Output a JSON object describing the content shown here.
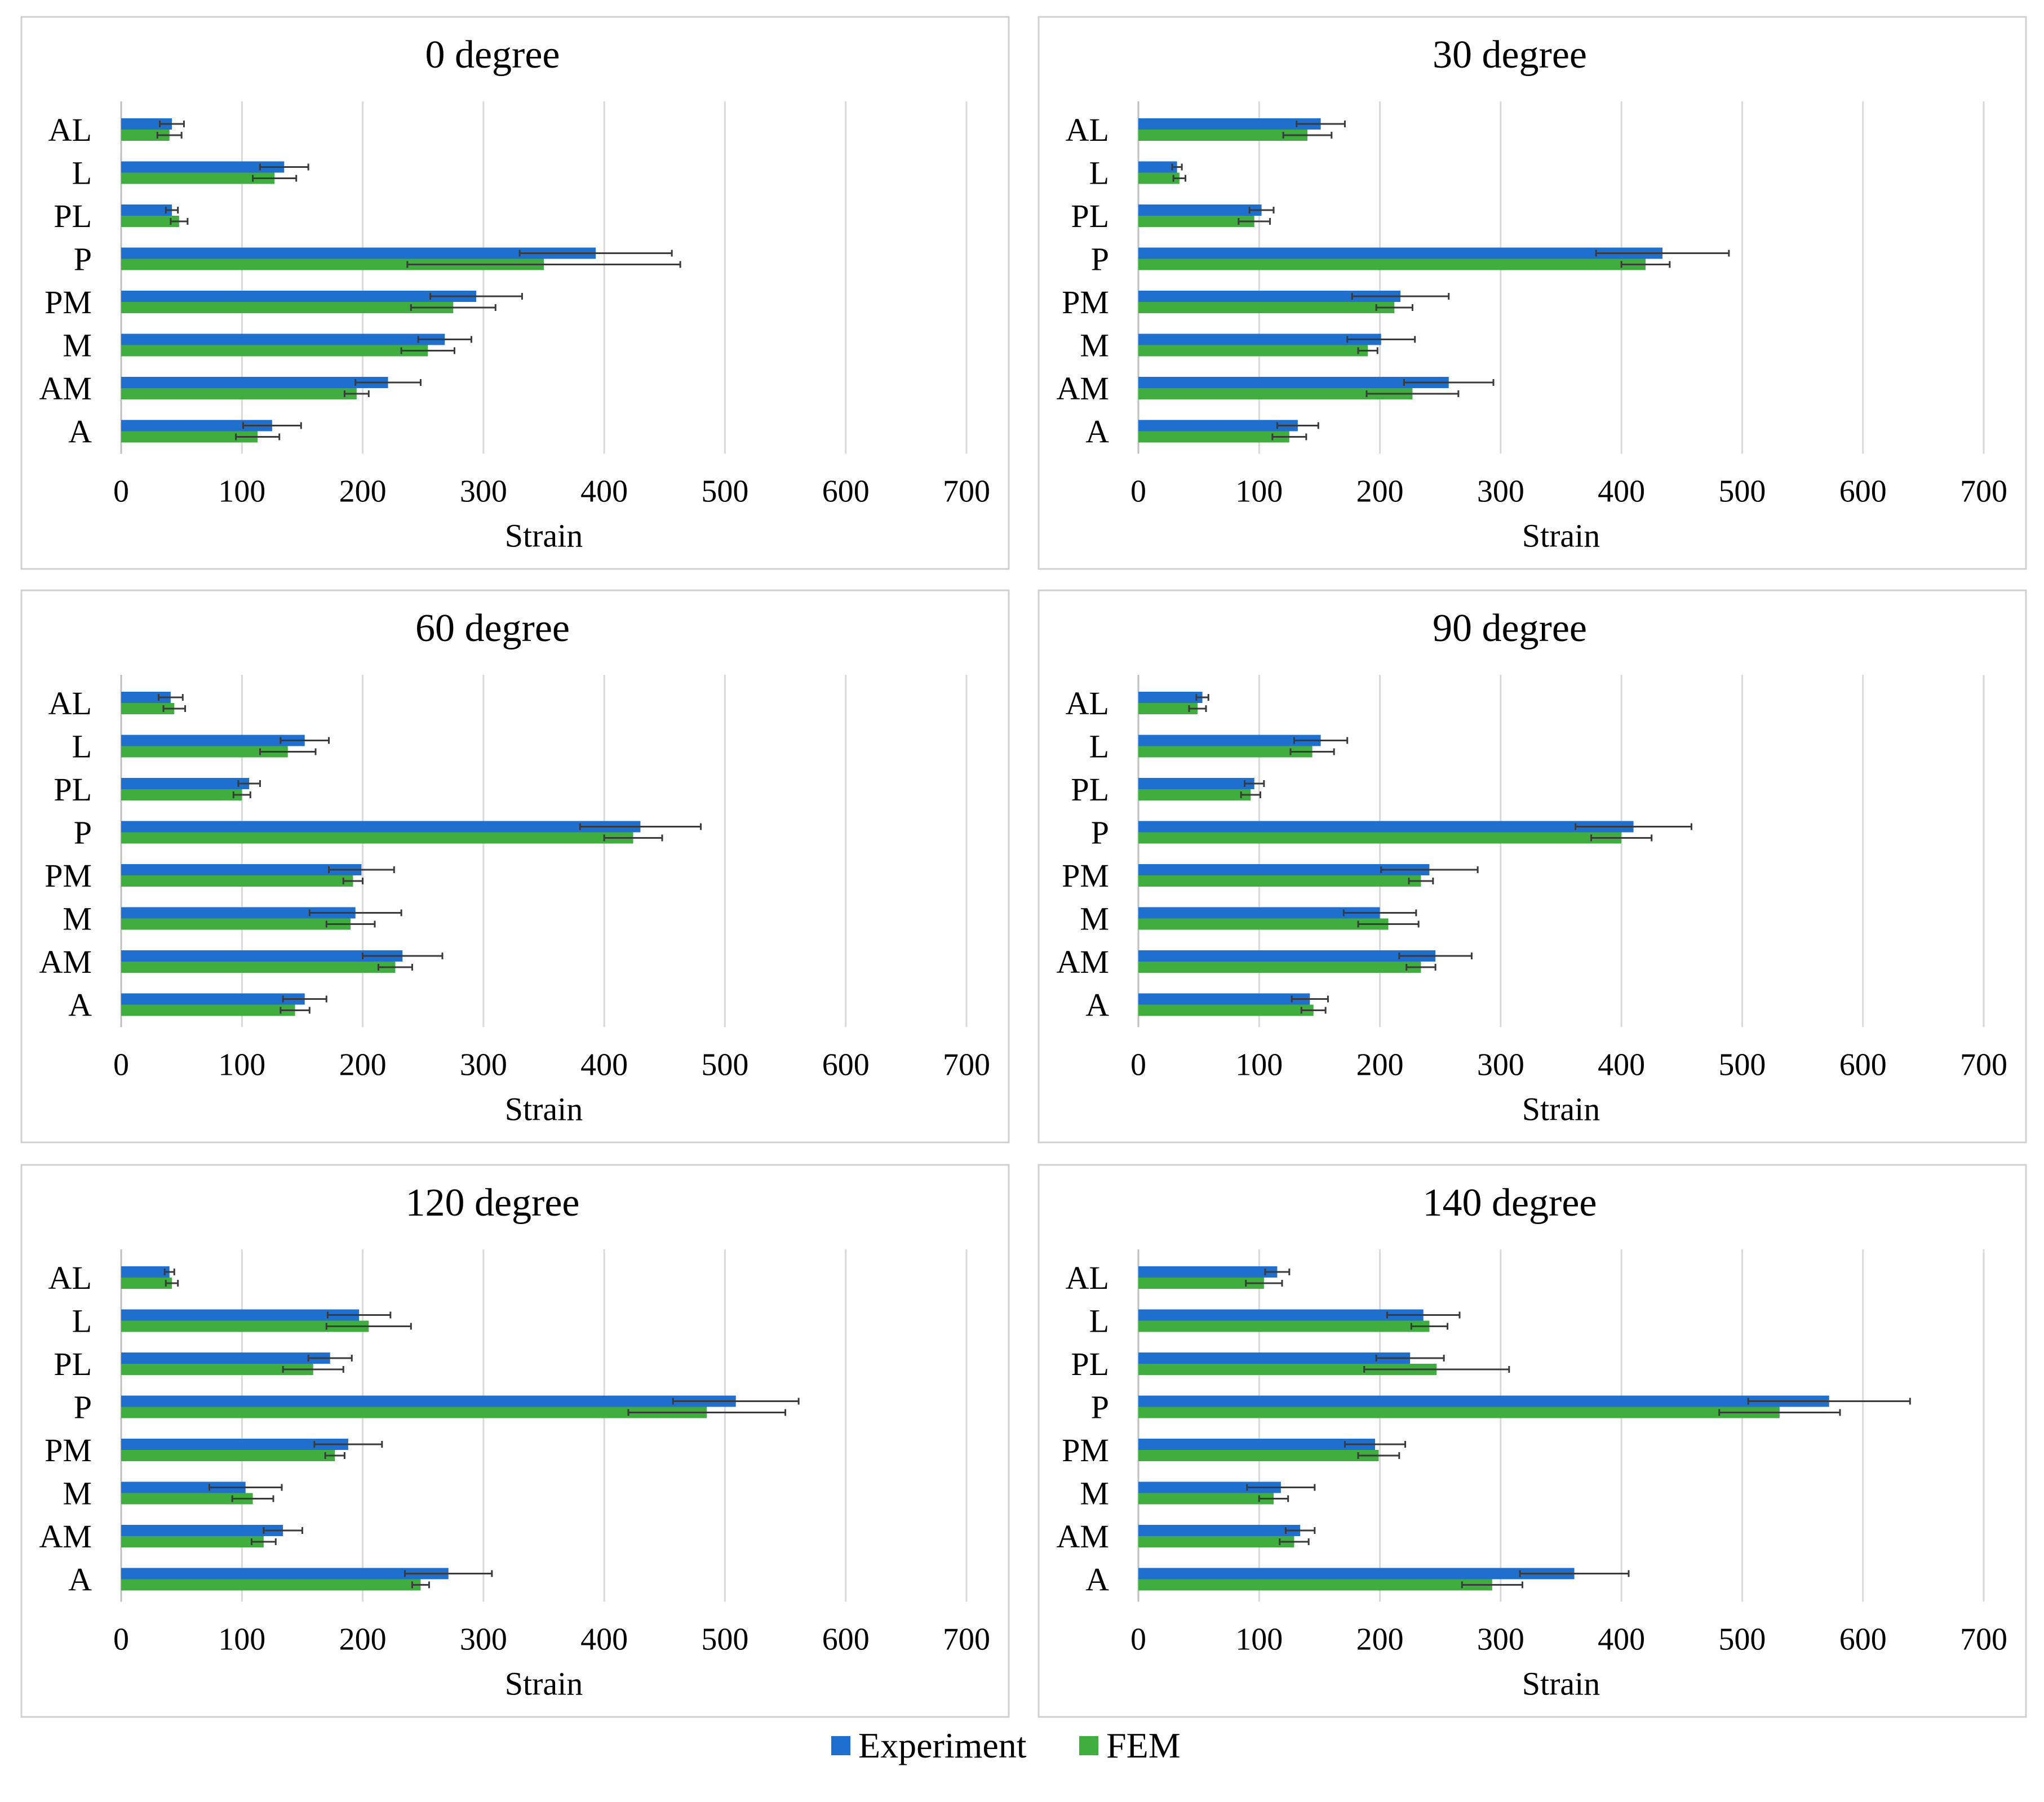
{
  "chart_data": [
    {
      "type": "bar",
      "orientation": "horizontal",
      "title": "0 degree",
      "xlabel": "Strain",
      "ylabel": "",
      "xlim": [
        0,
        700
      ],
      "xticks": [
        0,
        100,
        200,
        300,
        400,
        500,
        600,
        700
      ],
      "categories": [
        "AL",
        "L",
        "PL",
        "P",
        "PM",
        "M",
        "AM",
        "A"
      ],
      "series": [
        {
          "name": "Experiment",
          "values": [
            42,
            135,
            42,
            393,
            294,
            268,
            221,
            125
          ],
          "errors": [
            10,
            20,
            5,
            63,
            38,
            22,
            27,
            24
          ]
        },
        {
          "name": "FEM",
          "values": [
            40,
            127,
            48,
            350,
            275,
            254,
            195,
            113
          ],
          "errors": [
            10,
            18,
            7,
            113,
            35,
            22,
            10,
            18
          ]
        }
      ]
    },
    {
      "type": "bar",
      "orientation": "horizontal",
      "title": "30 degree",
      "xlabel": "Strain",
      "ylabel": "",
      "xlim": [
        0,
        700
      ],
      "xticks": [
        0,
        100,
        200,
        300,
        400,
        500,
        600,
        700
      ],
      "categories": [
        "AL",
        "L",
        "PL",
        "P",
        "PM",
        "M",
        "AM",
        "A"
      ],
      "series": [
        {
          "name": "Experiment",
          "values": [
            151,
            32,
            102,
            434,
            217,
            201,
            257,
            132
          ],
          "errors": [
            20,
            4,
            10,
            55,
            40,
            28,
            37,
            17
          ]
        },
        {
          "name": "FEM",
          "values": [
            140,
            34,
            96,
            420,
            212,
            190,
            227,
            125
          ],
          "errors": [
            20,
            5,
            13,
            20,
            15,
            8,
            38,
            14
          ]
        }
      ]
    },
    {
      "type": "bar",
      "orientation": "horizontal",
      "title": "60 degree",
      "xlabel": "Strain",
      "ylabel": "",
      "xlim": [
        0,
        700
      ],
      "xticks": [
        0,
        100,
        200,
        300,
        400,
        500,
        600,
        700
      ],
      "categories": [
        "AL",
        "L",
        "PL",
        "P",
        "PM",
        "M",
        "AM",
        "A"
      ],
      "series": [
        {
          "name": "Experiment",
          "values": [
            41,
            152,
            106,
            430,
            199,
            194,
            233,
            152
          ],
          "errors": [
            10,
            20,
            9,
            50,
            27,
            38,
            33,
            18
          ]
        },
        {
          "name": "FEM",
          "values": [
            44,
            138,
            100,
            424,
            192,
            190,
            227,
            144
          ],
          "errors": [
            9,
            23,
            7,
            24,
            8,
            20,
            14,
            12
          ]
        }
      ]
    },
    {
      "type": "bar",
      "orientation": "horizontal",
      "title": "90 degree",
      "xlabel": "Strain",
      "ylabel": "",
      "xlim": [
        0,
        700
      ],
      "xticks": [
        0,
        100,
        200,
        300,
        400,
        500,
        600,
        700
      ],
      "categories": [
        "AL",
        "L",
        "PL",
        "P",
        "PM",
        "M",
        "AM",
        "A"
      ],
      "series": [
        {
          "name": "Experiment",
          "values": [
            53,
            151,
            96,
            410,
            241,
            200,
            246,
            142
          ],
          "errors": [
            5,
            22,
            8,
            48,
            40,
            30,
            30,
            15
          ]
        },
        {
          "name": "FEM",
          "values": [
            49,
            144,
            93,
            400,
            234,
            207,
            234,
            145
          ],
          "errors": [
            7,
            18,
            8,
            25,
            10,
            25,
            12,
            10
          ]
        }
      ]
    },
    {
      "type": "bar",
      "orientation": "horizontal",
      "title": "120 degree",
      "xlabel": "Strain",
      "ylabel": "",
      "xlim": [
        0,
        700
      ],
      "xticks": [
        0,
        100,
        200,
        300,
        400,
        500,
        600,
        700
      ],
      "categories": [
        "AL",
        "L",
        "PL",
        "P",
        "PM",
        "M",
        "AM",
        "A"
      ],
      "series": [
        {
          "name": "Experiment",
          "values": [
            40,
            197,
            173,
            509,
            188,
            103,
            134,
            271
          ],
          "errors": [
            4,
            26,
            18,
            52,
            28,
            30,
            16,
            36
          ]
        },
        {
          "name": "FEM",
          "values": [
            42,
            205,
            159,
            485,
            177,
            109,
            118,
            248
          ],
          "errors": [
            5,
            35,
            25,
            65,
            8,
            17,
            10,
            7
          ]
        }
      ]
    },
    {
      "type": "bar",
      "orientation": "horizontal",
      "title": "140 degree",
      "xlabel": "Strain",
      "ylabel": "",
      "xlim": [
        0,
        700
      ],
      "xticks": [
        0,
        100,
        200,
        300,
        400,
        500,
        600,
        700
      ],
      "categories": [
        "AL",
        "L",
        "PL",
        "P",
        "PM",
        "M",
        "AM",
        "A"
      ],
      "series": [
        {
          "name": "Experiment",
          "values": [
            115,
            236,
            225,
            572,
            196,
            118,
            134,
            361
          ],
          "errors": [
            10,
            30,
            28,
            67,
            25,
            28,
            12,
            45
          ]
        },
        {
          "name": "FEM",
          "values": [
            104,
            241,
            247,
            531,
            199,
            112,
            129,
            293
          ],
          "errors": [
            15,
            15,
            60,
            50,
            17,
            12,
            12,
            25
          ]
        }
      ]
    }
  ],
  "legend": {
    "position": "bottom-center",
    "items": [
      {
        "label": "Experiment",
        "color": "#1f6fcf"
      },
      {
        "label": "FEM",
        "color": "#3fae3f"
      }
    ]
  }
}
